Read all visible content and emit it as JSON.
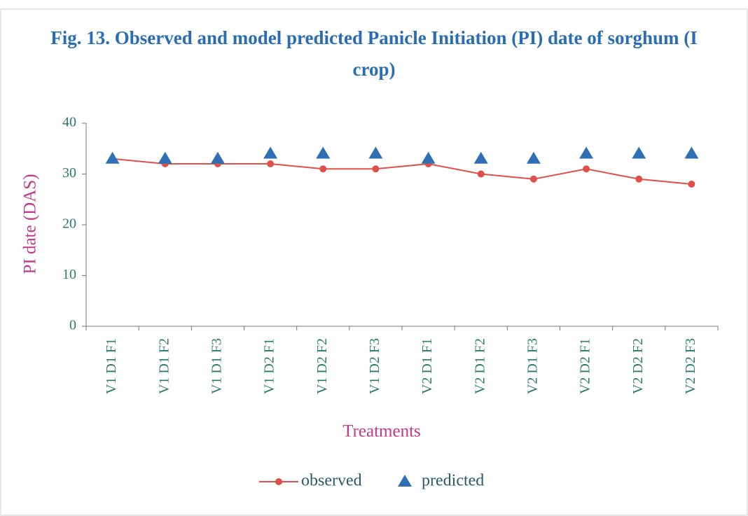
{
  "chart_data": {
    "type": "line",
    "title": "Fig. 13. Observed and model predicted Panicle Initiation (PI) date of sorghum (I crop)",
    "x_label": "Treatments",
    "y_label": "PI date (DAS)",
    "categories": [
      "V1 D1 F1",
      "V1 D1 F2",
      "V1 D1 F3",
      "V1 D2 F1",
      "V1 D2 F2",
      "V1 D2 F3",
      "V2 D1 F1",
      "V2 D1 F2",
      "V2 D1 F3",
      "V2 D2 F1",
      "V2 D2 F2",
      "V2 D2 F3"
    ],
    "series": [
      {
        "name": "observed",
        "color": "#e0504a",
        "marker": "circle",
        "line": true,
        "values": [
          33,
          32,
          32,
          32,
          31,
          31,
          32,
          30,
          29,
          31,
          29,
          28
        ]
      },
      {
        "name": "predicted",
        "color": "#2e6fb5",
        "marker": "triangle",
        "line": false,
        "values": [
          33,
          33,
          33,
          34,
          34,
          34,
          33,
          33,
          33,
          34,
          34,
          34
        ]
      }
    ],
    "ylim": [
      0,
      40
    ],
    "yticks": [
      0,
      10,
      20,
      30,
      40
    ],
    "grid": false,
    "legend": "bottom"
  }
}
